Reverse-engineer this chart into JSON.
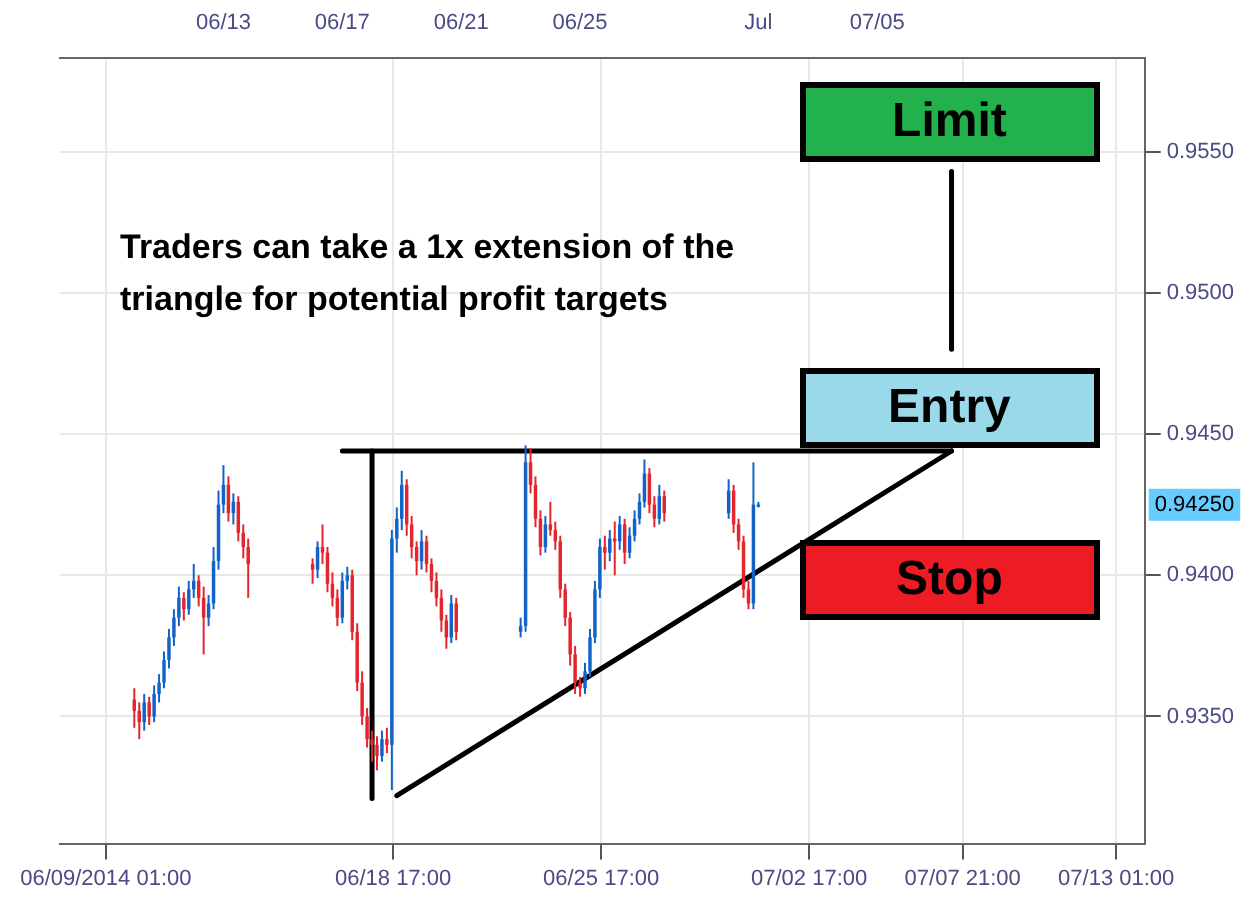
{
  "chart_data": {
    "type": "candlestick",
    "x": [
      "2014-06-10T00:00",
      "2014-06-10T04:00",
      "2014-06-10T08:00",
      "2014-06-10T12:00",
      "2014-06-10T16:00",
      "2014-06-10T20:00",
      "2014-06-11T00:00",
      "2014-06-11T04:00",
      "2014-06-11T08:00",
      "2014-06-11T12:00",
      "2014-06-11T16:00",
      "2014-06-11T20:00",
      "2014-06-12T00:00",
      "2014-06-12T04:00",
      "2014-06-12T08:00",
      "2014-06-12T12:00",
      "2014-06-12T16:00",
      "2014-06-12T20:00",
      "2014-06-13T00:00",
      "2014-06-13T04:00",
      "2014-06-13T08:00",
      "2014-06-13T12:00",
      "2014-06-13T16:00",
      "2014-06-13T20:00",
      "2014-06-16T00:00",
      "2014-06-16T04:00",
      "2014-06-16T08:00",
      "2014-06-16T12:00",
      "2014-06-16T16:00",
      "2014-06-16T20:00",
      "2014-06-17T00:00",
      "2014-06-17T04:00",
      "2014-06-17T08:00",
      "2014-06-17T12:00",
      "2014-06-17T16:00",
      "2014-06-17T20:00",
      "2014-06-18T00:00",
      "2014-06-18T04:00",
      "2014-06-18T08:00",
      "2014-06-18T12:00",
      "2014-06-18T16:00",
      "2014-06-18T20:00",
      "2014-06-19T00:00",
      "2014-06-19T04:00",
      "2014-06-19T08:00",
      "2014-06-19T12:00",
      "2014-06-19T16:00",
      "2014-06-19T20:00",
      "2014-06-20T00:00",
      "2014-06-20T04:00",
      "2014-06-20T08:00",
      "2014-06-20T12:00",
      "2014-06-20T16:00",
      "2014-06-20T20:00",
      "2014-06-23T00:00",
      "2014-06-23T04:00",
      "2014-06-23T08:00",
      "2014-06-23T12:00",
      "2014-06-23T16:00",
      "2014-06-23T20:00",
      "2014-06-24T00:00",
      "2014-06-24T04:00",
      "2014-06-24T08:00",
      "2014-06-24T12:00",
      "2014-06-24T16:00",
      "2014-06-24T20:00",
      "2014-06-25T00:00",
      "2014-06-25T04:00",
      "2014-06-25T08:00",
      "2014-06-25T12:00",
      "2014-06-25T16:00",
      "2014-06-25T20:00",
      "2014-06-26T00:00",
      "2014-06-26T04:00",
      "2014-06-26T08:00",
      "2014-06-26T12:00",
      "2014-06-26T16:00",
      "2014-06-26T20:00",
      "2014-06-27T00:00",
      "2014-06-27T04:00",
      "2014-06-27T08:00",
      "2014-06-27T12:00",
      "2014-06-27T16:00",
      "2014-06-27T20:00",
      "2014-06-30T00:00",
      "2014-06-30T04:00",
      "2014-06-30T08:00",
      "2014-06-30T12:00",
      "2014-06-30T16:00",
      "2014-06-30T20:00",
      "2014-07-01T00:00"
    ],
    "ohlc": [
      [
        0.9356,
        0.936,
        0.9346,
        0.9352
      ],
      [
        0.9352,
        0.9355,
        0.9342,
        0.9348
      ],
      [
        0.9348,
        0.9358,
        0.9345,
        0.9355
      ],
      [
        0.9355,
        0.9357,
        0.9347,
        0.935
      ],
      [
        0.935,
        0.9361,
        0.9348,
        0.9358
      ],
      [
        0.9358,
        0.9365,
        0.9355,
        0.9362
      ],
      [
        0.9362,
        0.9373,
        0.936,
        0.937
      ],
      [
        0.937,
        0.9381,
        0.9367,
        0.9378
      ],
      [
        0.9378,
        0.9388,
        0.9375,
        0.9385
      ],
      [
        0.9385,
        0.9396,
        0.9382,
        0.9392
      ],
      [
        0.9392,
        0.9394,
        0.9384,
        0.9388
      ],
      [
        0.9388,
        0.9398,
        0.9386,
        0.9395
      ],
      [
        0.9395,
        0.9404,
        0.9392,
        0.9398
      ],
      [
        0.9398,
        0.94,
        0.9389,
        0.9392
      ],
      [
        0.9392,
        0.9396,
        0.9372,
        0.9385
      ],
      [
        0.9385,
        0.9393,
        0.9382,
        0.939
      ],
      [
        0.939,
        0.941,
        0.9388,
        0.9405
      ],
      [
        0.9405,
        0.943,
        0.9402,
        0.9425
      ],
      [
        0.9425,
        0.9439,
        0.9422,
        0.9432
      ],
      [
        0.9432,
        0.9435,
        0.9419,
        0.9422
      ],
      [
        0.9422,
        0.9429,
        0.9418,
        0.9426
      ],
      [
        0.9426,
        0.9428,
        0.9412,
        0.9415
      ],
      [
        0.9415,
        0.9418,
        0.9406,
        0.941
      ],
      [
        0.941,
        0.9413,
        0.9392,
        0.9404
      ],
      [
        0.9404,
        0.9406,
        0.9397,
        0.9402
      ],
      [
        0.9402,
        0.9412,
        0.9399,
        0.941
      ],
      [
        0.941,
        0.9418,
        0.9404,
        0.9408
      ],
      [
        0.9408,
        0.941,
        0.9394,
        0.9397
      ],
      [
        0.9397,
        0.9401,
        0.9389,
        0.9392
      ],
      [
        0.9392,
        0.9395,
        0.9382,
        0.9385
      ],
      [
        0.9385,
        0.9401,
        0.9383,
        0.9398
      ],
      [
        0.9398,
        0.9403,
        0.9395,
        0.94
      ],
      [
        0.94,
        0.9402,
        0.9377,
        0.938
      ],
      [
        0.938,
        0.9383,
        0.9359,
        0.9362
      ],
      [
        0.9362,
        0.9366,
        0.9347,
        0.935
      ],
      [
        0.935,
        0.9353,
        0.9339,
        0.9342
      ],
      [
        0.9342,
        0.9345,
        0.9334,
        0.934
      ],
      [
        0.934,
        0.9343,
        0.9331,
        0.9336
      ],
      [
        0.9336,
        0.9345,
        0.9334,
        0.9342
      ],
      [
        0.9342,
        0.9346,
        0.9337,
        0.934
      ],
      [
        0.934,
        0.9416,
        0.9324,
        0.9413
      ],
      [
        0.9413,
        0.9424,
        0.9408,
        0.942
      ],
      [
        0.942,
        0.9437,
        0.9416,
        0.9432
      ],
      [
        0.9432,
        0.9434,
        0.9414,
        0.9418
      ],
      [
        0.9418,
        0.9421,
        0.9406,
        0.941
      ],
      [
        0.941,
        0.9412,
        0.94,
        0.9405
      ],
      [
        0.9405,
        0.9416,
        0.9402,
        0.9412
      ],
      [
        0.9412,
        0.9414,
        0.9401,
        0.9404
      ],
      [
        0.9404,
        0.9406,
        0.9394,
        0.9398
      ],
      [
        0.9398,
        0.9401,
        0.9389,
        0.9392
      ],
      [
        0.9392,
        0.9395,
        0.938,
        0.9384
      ],
      [
        0.9384,
        0.9386,
        0.9374,
        0.9378
      ],
      [
        0.9378,
        0.9393,
        0.9376,
        0.939
      ],
      [
        0.939,
        0.9392,
        0.9377,
        0.938
      ],
      [
        0.938,
        0.9385,
        0.9378,
        0.9382
      ],
      [
        0.9382,
        0.9446,
        0.938,
        0.944
      ],
      [
        0.944,
        0.9445,
        0.9429,
        0.9432
      ],
      [
        0.9432,
        0.9435,
        0.9417,
        0.942
      ],
      [
        0.942,
        0.9423,
        0.9407,
        0.941
      ],
      [
        0.941,
        0.9421,
        0.9408,
        0.9418
      ],
      [
        0.9418,
        0.9426,
        0.9414,
        0.9416
      ],
      [
        0.9416,
        0.9419,
        0.9409,
        0.9412
      ],
      [
        0.9412,
        0.9414,
        0.9392,
        0.9395
      ],
      [
        0.9395,
        0.9397,
        0.9382,
        0.9385
      ],
      [
        0.9385,
        0.9387,
        0.9368,
        0.9372
      ],
      [
        0.9372,
        0.9375,
        0.9358,
        0.9362
      ],
      [
        0.9362,
        0.9364,
        0.9357,
        0.936
      ],
      [
        0.936,
        0.9369,
        0.9358,
        0.9366
      ],
      [
        0.9366,
        0.9381,
        0.9364,
        0.9378
      ],
      [
        0.9378,
        0.9398,
        0.9376,
        0.9395
      ],
      [
        0.9395,
        0.9413,
        0.9392,
        0.941
      ],
      [
        0.941,
        0.9414,
        0.9402,
        0.9408
      ],
      [
        0.9408,
        0.9416,
        0.9405,
        0.9413
      ],
      [
        0.9413,
        0.9419,
        0.94,
        0.9412
      ],
      [
        0.9412,
        0.9421,
        0.9409,
        0.9418
      ],
      [
        0.9418,
        0.942,
        0.9404,
        0.9408
      ],
      [
        0.9408,
        0.9417,
        0.9406,
        0.9414
      ],
      [
        0.9414,
        0.9423,
        0.9412,
        0.942
      ],
      [
        0.942,
        0.9429,
        0.9418,
        0.9426
      ],
      [
        0.9426,
        0.9441,
        0.9424,
        0.9436
      ],
      [
        0.9436,
        0.9438,
        0.9422,
        0.9425
      ],
      [
        0.9425,
        0.9428,
        0.9417,
        0.942
      ],
      [
        0.942,
        0.9432,
        0.9418,
        0.9428
      ],
      [
        0.9428,
        0.943,
        0.9419,
        0.9422
      ],
      [
        0.9422,
        0.9434,
        0.942,
        0.943
      ],
      [
        0.943,
        0.9432,
        0.9415,
        0.9418
      ],
      [
        0.9418,
        0.942,
        0.9409,
        0.9412
      ],
      [
        0.9412,
        0.9414,
        0.9392,
        0.9395
      ],
      [
        0.9395,
        0.9398,
        0.9388,
        0.939
      ],
      [
        0.939,
        0.944,
        0.9388,
        0.9425
      ],
      [
        0.9425,
        0.9426,
        0.9424,
        0.9425
      ]
    ],
    "colors": [
      "#e3262d",
      "#e3262d",
      "#1263c9",
      "#e3262d",
      "#1263c9",
      "#1263c9",
      "#1263c9",
      "#1263c9",
      "#1263c9",
      "#1263c9",
      "#e3262d",
      "#1263c9",
      "#1263c9",
      "#e3262d",
      "#e3262d",
      "#1263c9",
      "#1263c9",
      "#1263c9",
      "#1263c9",
      "#e3262d",
      "#1263c9",
      "#e3262d",
      "#e3262d",
      "#e3262d",
      "#e3262d",
      "#1263c9",
      "#e3262d",
      "#e3262d",
      "#e3262d",
      "#e3262d",
      "#1263c9",
      "#1263c9",
      "#e3262d",
      "#e3262d",
      "#e3262d",
      "#e3262d",
      "#e3262d",
      "#e3262d",
      "#1263c9",
      "#e3262d",
      "#1263c9",
      "#1263c9",
      "#1263c9",
      "#e3262d",
      "#e3262d",
      "#e3262d",
      "#1263c9",
      "#e3262d",
      "#e3262d",
      "#e3262d",
      "#e3262d",
      "#e3262d",
      "#1263c9",
      "#e3262d",
      "#1263c9",
      "#1263c9",
      "#e3262d",
      "#e3262d",
      "#e3262d",
      "#1263c9",
      "#e3262d",
      "#e3262d",
      "#e3262d",
      "#e3262d",
      "#e3262d",
      "#e3262d",
      "#e3262d",
      "#1263c9",
      "#1263c9",
      "#1263c9",
      "#1263c9",
      "#e3262d",
      "#1263c9",
      "#e3262d",
      "#1263c9",
      "#e3262d",
      "#1263c9",
      "#1263c9",
      "#1263c9",
      "#1263c9",
      "#e3262d",
      "#e3262d",
      "#1263c9",
      "#e3262d",
      "#1263c9",
      "#e3262d",
      "#e3262d",
      "#e3262d",
      "#e3262d",
      "#1263c9",
      "#1263c9"
    ],
    "series": [
      {
        "type": "line",
        "color": "#000000",
        "x": [
          "2014-06-17T00:00",
          "2014-07-07T12:00"
        ],
        "values": [
          0.9444,
          0.9444
        ]
      },
      {
        "type": "line",
        "color": "#000000",
        "x": [
          "2014-06-18T00:00",
          "2014-06-18T00:00"
        ],
        "values": [
          0.9444,
          0.9321
        ]
      },
      {
        "type": "line",
        "color": "#000000",
        "x": [
          "2014-06-18T20:00",
          "2014-07-07T12:00"
        ],
        "values": [
          0.9322,
          0.9444
        ]
      },
      {
        "type": "line",
        "color": "#000000",
        "x": [
          "2014-07-07T12:00",
          "2014-07-07T12:00"
        ],
        "values": [
          0.948,
          0.9543
        ]
      }
    ],
    "annotations": [
      "Traders can take a 1x extension of the triangle for potential profit targets",
      "Limit",
      "Entry",
      "Stop",
      "0.94250"
    ],
    "xlim": [
      "2014-06-07T12:00",
      "2014-07-14T00:00"
    ],
    "xticks": [
      {
        "value": "2014-06-09T01:00",
        "label": "06/09/2014 01:00"
      },
      {
        "value": "2014-06-18T17:00",
        "label": "06/18 17:00"
      },
      {
        "value": "2014-06-25T17:00",
        "label": "06/25 17:00"
      },
      {
        "value": "2014-07-02T17:00",
        "label": "07/02 17:00"
      },
      {
        "value": "2014-07-07T21:00",
        "label": "07/07 21:00"
      },
      {
        "value": "2014-07-13T01:00",
        "label": "07/13 01:00"
      }
    ],
    "x2lim": [
      "2014-06-07T12:00",
      "2014-07-14T00:00"
    ],
    "x2ticks": [
      {
        "value": "2014-06-13T00:00",
        "label": "06/13"
      },
      {
        "value": "2014-06-17T00:00",
        "label": "06/17"
      },
      {
        "value": "2014-06-21T00:00",
        "label": "06/21"
      },
      {
        "value": "2014-06-25T00:00",
        "label": "06/25"
      },
      {
        "value": "2014-07-01T00:00",
        "label": "Jul"
      },
      {
        "value": "2014-07-05T00:00",
        "label": "07/05"
      }
    ],
    "ylim": [
      0.9305,
      0.9583
    ],
    "yticks": [
      {
        "value": 0.935,
        "label": "0.9350"
      },
      {
        "value": 0.94,
        "label": "0.9400"
      },
      {
        "value": 0.945,
        "label": "0.9450"
      },
      {
        "value": 0.95,
        "label": "0.9500"
      },
      {
        "value": 0.955,
        "label": "0.9550"
      }
    ],
    "grid": true
  }
}
